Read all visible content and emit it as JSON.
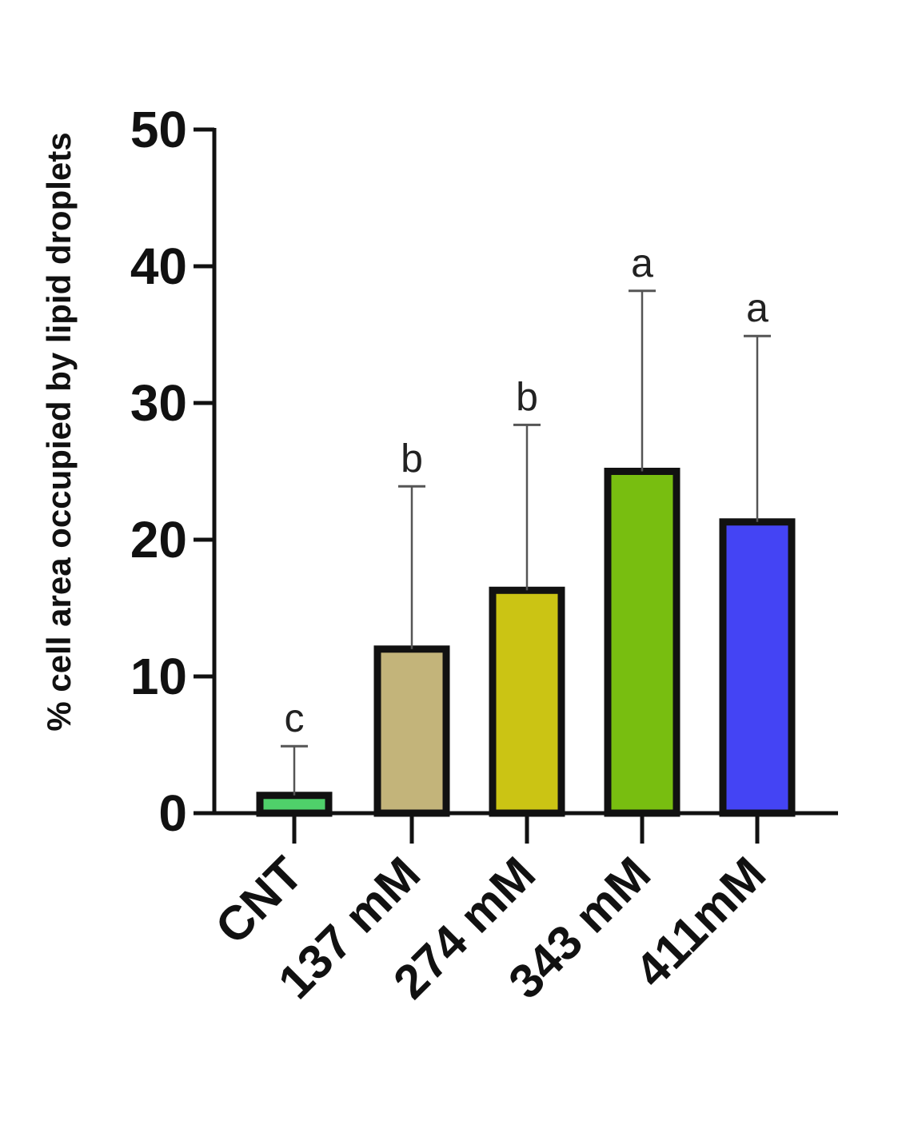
{
  "chart_data": {
    "type": "bar",
    "title": "",
    "xlabel": "",
    "ylabel": "% cell area occupied by lipid droplets",
    "categories": [
      "CNT",
      "137 mM",
      "274 mM",
      "343 mM",
      "411mM"
    ],
    "values": [
      1.3,
      12.0,
      16.3,
      25.0,
      21.3
    ],
    "error_upper": [
      4.9,
      23.9,
      28.4,
      38.2,
      34.9
    ],
    "significance_letters": [
      "c",
      "b",
      "b",
      "a",
      "a"
    ],
    "bar_colors": [
      "#4fd06a",
      "#c3b47a",
      "#cbc414",
      "#78be10",
      "#4444f4"
    ],
    "ylim": [
      0,
      50
    ],
    "yticks": [
      0,
      10,
      20,
      30,
      40,
      50
    ],
    "grid": false,
    "legend": "none"
  }
}
